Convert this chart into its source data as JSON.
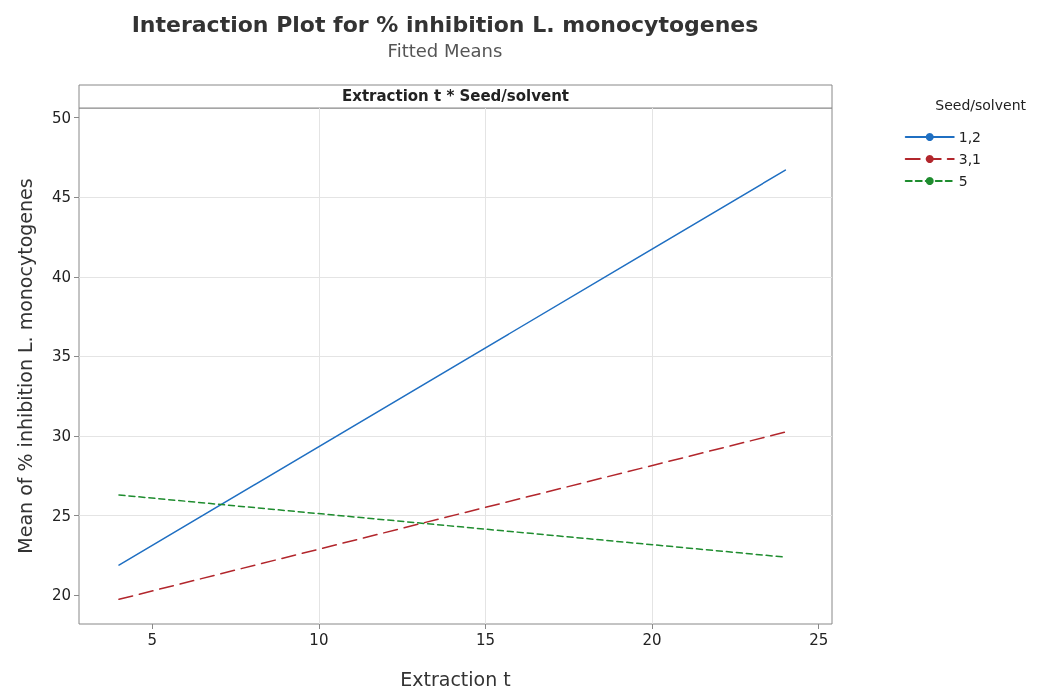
{
  "chart_data": {
    "type": "line",
    "title": "Interaction Plot for % inhibition L. monocytogenes",
    "subtitle": "Fitted Means",
    "xlabel": "Extraction t",
    "ylabel": "Mean of % inhibition L. monocytogenes",
    "legend_title": "Seed/solvent",
    "annotations": [
      "Extraction t * Seed/solvent"
    ],
    "x": [
      4,
      24
    ],
    "series": [
      {
        "name": "1,2",
        "color": "#1f6fc2",
        "values": [
          21.9,
          46.7
        ],
        "line_style": "solid"
      },
      {
        "name": "3,1",
        "color": "#b2262c",
        "values": [
          19.75,
          30.25
        ],
        "line_style": "dashed"
      },
      {
        "name": "5",
        "color": "#1e8c2e",
        "values": [
          26.3,
          22.4
        ],
        "line_style": "dotted"
      }
    ],
    "xlim": [
      2.8,
      25.4
    ],
    "xticks": [
      5,
      10,
      15,
      20,
      25
    ],
    "ylim": [
      18.2,
      50.6
    ],
    "yticks": [
      20,
      25,
      30,
      35,
      40,
      45,
      50
    ],
    "grid": true,
    "legend": "top right",
    "marker": "none"
  }
}
